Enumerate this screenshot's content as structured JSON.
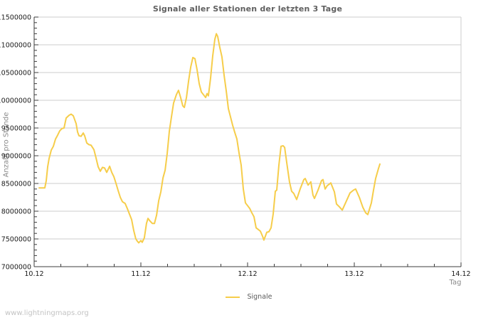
{
  "page": {
    "watermark": "www.lightningmaps.org"
  },
  "colors": {
    "line": "#f6cd4a",
    "grid": "#cccccc",
    "frame": "#cccccc",
    "axis": "#3c3c3c",
    "tick": "#3c3c3c",
    "tick_label": "#1a1a1a",
    "title": "#5f5f5f",
    "axis_label": "#8a8a8a",
    "legend_text": "#5a5a5a",
    "watermark": "#c3c3c3",
    "background": "#ffffff"
  },
  "chart_data": {
    "type": "line",
    "title": "Signale aller Stationen der letzten 3 Tage",
    "xlabel": "Tag",
    "ylabel": "Anzahl pro Stunde",
    "grid": "horizontal-major",
    "legend": {
      "position": "bottom-center",
      "entries": [
        {
          "label": "Signale",
          "color": "#f6cd4a"
        }
      ]
    },
    "xlim": [
      0,
      4
    ],
    "ylim": [
      7000000,
      11500000
    ],
    "x_axis": {
      "tick_labels": [
        "10.12",
        "11.12",
        "12.12",
        "13.12",
        "14.12"
      ],
      "tick_positions": [
        0,
        1,
        2,
        3,
        4
      ],
      "minor_step": 0.25
    },
    "y_axis": {
      "min": 7000000,
      "max": 11500000,
      "major_step": 500000,
      "minor_step": 100000
    },
    "series": [
      {
        "name": "Signale",
        "color": "#f6cd4a",
        "points": [
          [
            0.047,
            8420000
          ],
          [
            0.1,
            8420000
          ],
          [
            0.113,
            8550000
          ],
          [
            0.127,
            8800000
          ],
          [
            0.14,
            8950000
          ],
          [
            0.16,
            9100000
          ],
          [
            0.18,
            9170000
          ],
          [
            0.2,
            9300000
          ],
          [
            0.22,
            9370000
          ],
          [
            0.24,
            9450000
          ],
          [
            0.26,
            9490000
          ],
          [
            0.28,
            9500000
          ],
          [
            0.3,
            9680000
          ],
          [
            0.327,
            9730000
          ],
          [
            0.347,
            9750000
          ],
          [
            0.367,
            9720000
          ],
          [
            0.393,
            9580000
          ],
          [
            0.407,
            9430000
          ],
          [
            0.42,
            9360000
          ],
          [
            0.44,
            9350000
          ],
          [
            0.46,
            9410000
          ],
          [
            0.473,
            9360000
          ],
          [
            0.493,
            9230000
          ],
          [
            0.513,
            9200000
          ],
          [
            0.533,
            9190000
          ],
          [
            0.56,
            9110000
          ],
          [
            0.58,
            8960000
          ],
          [
            0.6,
            8800000
          ],
          [
            0.62,
            8720000
          ],
          [
            0.64,
            8790000
          ],
          [
            0.66,
            8780000
          ],
          [
            0.68,
            8700000
          ],
          [
            0.707,
            8810000
          ],
          [
            0.727,
            8700000
          ],
          [
            0.747,
            8620000
          ],
          [
            0.767,
            8500000
          ],
          [
            0.787,
            8370000
          ],
          [
            0.807,
            8250000
          ],
          [
            0.827,
            8170000
          ],
          [
            0.853,
            8140000
          ],
          [
            0.873,
            8050000
          ],
          [
            0.893,
            7950000
          ],
          [
            0.913,
            7850000
          ],
          [
            0.933,
            7650000
          ],
          [
            0.953,
            7500000
          ],
          [
            0.967,
            7460000
          ],
          [
            0.98,
            7430000
          ],
          [
            1.0,
            7470000
          ],
          [
            1.013,
            7440000
          ],
          [
            1.033,
            7520000
          ],
          [
            1.053,
            7780000
          ],
          [
            1.067,
            7870000
          ],
          [
            1.087,
            7820000
          ],
          [
            1.107,
            7780000
          ],
          [
            1.127,
            7780000
          ],
          [
            1.147,
            7930000
          ],
          [
            1.167,
            8190000
          ],
          [
            1.187,
            8350000
          ],
          [
            1.207,
            8600000
          ],
          [
            1.227,
            8740000
          ],
          [
            1.247,
            9050000
          ],
          [
            1.267,
            9440000
          ],
          [
            1.287,
            9700000
          ],
          [
            1.307,
            9950000
          ],
          [
            1.333,
            10100000
          ],
          [
            1.353,
            10180000
          ],
          [
            1.373,
            10050000
          ],
          [
            1.393,
            9900000
          ],
          [
            1.407,
            9870000
          ],
          [
            1.427,
            10050000
          ],
          [
            1.447,
            10350000
          ],
          [
            1.467,
            10600000
          ],
          [
            1.487,
            10770000
          ],
          [
            1.507,
            10750000
          ],
          [
            1.527,
            10550000
          ],
          [
            1.547,
            10300000
          ],
          [
            1.567,
            10150000
          ],
          [
            1.587,
            10100000
          ],
          [
            1.607,
            10050000
          ],
          [
            1.62,
            10120000
          ],
          [
            1.633,
            10080000
          ],
          [
            1.653,
            10400000
          ],
          [
            1.673,
            10800000
          ],
          [
            1.693,
            11100000
          ],
          [
            1.707,
            11200000
          ],
          [
            1.72,
            11150000
          ],
          [
            1.74,
            10950000
          ],
          [
            1.76,
            10780000
          ],
          [
            1.78,
            10450000
          ],
          [
            1.8,
            10170000
          ],
          [
            1.82,
            9850000
          ],
          [
            1.84,
            9700000
          ],
          [
            1.86,
            9550000
          ],
          [
            1.88,
            9420000
          ],
          [
            1.9,
            9300000
          ],
          [
            1.92,
            9050000
          ],
          [
            1.94,
            8830000
          ],
          [
            1.96,
            8400000
          ],
          [
            1.98,
            8150000
          ],
          [
            2.0,
            8100000
          ],
          [
            2.02,
            8050000
          ],
          [
            2.04,
            7970000
          ],
          [
            2.06,
            7900000
          ],
          [
            2.08,
            7700000
          ],
          [
            2.1,
            7670000
          ],
          [
            2.12,
            7640000
          ],
          [
            2.14,
            7550000
          ],
          [
            2.153,
            7480000
          ],
          [
            2.167,
            7550000
          ],
          [
            2.18,
            7620000
          ],
          [
            2.2,
            7630000
          ],
          [
            2.22,
            7700000
          ],
          [
            2.24,
            7950000
          ],
          [
            2.26,
            8360000
          ],
          [
            2.273,
            8380000
          ],
          [
            2.293,
            8830000
          ],
          [
            2.313,
            9170000
          ],
          [
            2.333,
            9180000
          ],
          [
            2.347,
            9150000
          ],
          [
            2.367,
            8870000
          ],
          [
            2.393,
            8530000
          ],
          [
            2.413,
            8360000
          ],
          [
            2.433,
            8320000
          ],
          [
            2.46,
            8210000
          ],
          [
            2.493,
            8400000
          ],
          [
            2.527,
            8570000
          ],
          [
            2.54,
            8590000
          ],
          [
            2.567,
            8470000
          ],
          [
            2.593,
            8530000
          ],
          [
            2.613,
            8290000
          ],
          [
            2.627,
            8230000
          ],
          [
            2.66,
            8380000
          ],
          [
            2.693,
            8550000
          ],
          [
            2.707,
            8570000
          ],
          [
            2.727,
            8400000
          ],
          [
            2.747,
            8460000
          ],
          [
            2.767,
            8490000
          ],
          [
            2.78,
            8510000
          ],
          [
            2.813,
            8350000
          ],
          [
            2.833,
            8130000
          ],
          [
            2.86,
            8080000
          ],
          [
            2.887,
            8020000
          ],
          [
            2.927,
            8190000
          ],
          [
            2.96,
            8330000
          ],
          [
            2.993,
            8380000
          ],
          [
            3.013,
            8400000
          ],
          [
            3.047,
            8250000
          ],
          [
            3.08,
            8070000
          ],
          [
            3.107,
            7970000
          ],
          [
            3.127,
            7940000
          ],
          [
            3.16,
            8150000
          ],
          [
            3.18,
            8380000
          ],
          [
            3.2,
            8590000
          ],
          [
            3.227,
            8770000
          ],
          [
            3.24,
            8850000
          ]
        ]
      }
    ]
  }
}
